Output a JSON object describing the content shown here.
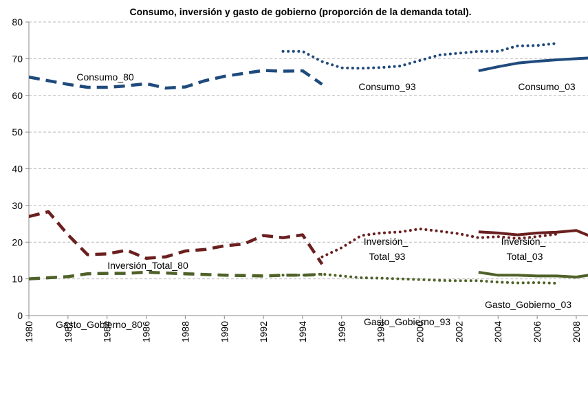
{
  "chart_data": {
    "type": "line",
    "title": "Consumo, inversión y gasto de gobierno  (proporción de la demanda total).",
    "xlim": [
      1980,
      2008.6
    ],
    "ylim": [
      0,
      80
    ],
    "xticks": [
      1980,
      1982,
      1984,
      1986,
      1988,
      1990,
      1992,
      1994,
      1996,
      1998,
      2000,
      2002,
      2004,
      2006,
      2008
    ],
    "yticks": [
      0,
      10,
      20,
      30,
      40,
      50,
      60,
      70,
      80
    ],
    "grid": true,
    "series": [
      {
        "name": "Consumo_80",
        "color": "#1f4a7c",
        "style": "dashed",
        "x": [
          1980,
          1981,
          1982,
          1983,
          1984,
          1985,
          1986,
          1987,
          1988,
          1989,
          1990,
          1991,
          1992,
          1993,
          1994,
          1995
        ],
        "values": [
          65,
          64,
          63,
          62.2,
          62.2,
          62.6,
          63.2,
          62,
          62.3,
          64,
          65.2,
          66,
          66.8,
          66.6,
          66.7,
          63
        ]
      },
      {
        "name": "Consumo_93",
        "color": "#1f4a7c",
        "style": "dotted",
        "x": [
          1993,
          1994,
          1995,
          1996,
          1997,
          1998,
          1999,
          2000,
          2001,
          2002,
          2003,
          2004,
          2005,
          2006,
          2007
        ],
        "values": [
          72,
          72,
          69.2,
          67.5,
          67.4,
          67.6,
          68,
          69.5,
          71,
          71.5,
          72,
          72,
          73.5,
          73.6,
          74.2
        ]
      },
      {
        "name": "Consumo_03",
        "color": "#1f4a7c",
        "style": "solid",
        "x": [
          2003,
          2004,
          2005,
          2006,
          2007,
          2008,
          2009
        ],
        "values": [
          66.7,
          67.8,
          68.8,
          69.3,
          69.7,
          70,
          70.3
        ]
      },
      {
        "name": "Inversión_Total_80",
        "color": "#6b1f1f",
        "style": "dashed",
        "x": [
          1980,
          1981,
          1982,
          1983,
          1984,
          1985,
          1986,
          1987,
          1988,
          1989,
          1990,
          1991,
          1992,
          1993,
          1994,
          1995
        ],
        "values": [
          27,
          28.3,
          22,
          16.6,
          16.8,
          17.8,
          15.6,
          16,
          17.6,
          18,
          19,
          19.5,
          21.8,
          21.2,
          22,
          14
        ]
      },
      {
        "name": "Inversión_\nTotal_93",
        "color": "#6b1f1f",
        "style": "dotted",
        "x": [
          1995,
          1996,
          1997,
          1998,
          1999,
          2000,
          2001,
          2002,
          2003,
          2004,
          2005,
          2006,
          2007
        ],
        "values": [
          16,
          18.5,
          21.8,
          22.5,
          22.8,
          23.6,
          23,
          22.3,
          21.2,
          21.5,
          21,
          21.5,
          22.2
        ]
      },
      {
        "name": "Inversión_\nTotal_03",
        "color": "#6b1f1f",
        "style": "solid",
        "x": [
          2003,
          2004,
          2005,
          2006,
          2007,
          2008,
          2009
        ],
        "values": [
          22.8,
          22.5,
          22,
          22.5,
          22.7,
          23.2,
          21
        ]
      },
      {
        "name": "Gasto_Gobierno_80",
        "color": "#4f6228",
        "style": "dashed",
        "x": [
          1980,
          1981,
          1982,
          1983,
          1984,
          1985,
          1986,
          1987,
          1988,
          1989,
          1990,
          1991,
          1992,
          1993,
          1994,
          1995
        ],
        "values": [
          10,
          10.3,
          10.6,
          11.4,
          11.5,
          11.5,
          11.8,
          11.6,
          11.4,
          11.2,
          11,
          10.9,
          10.8,
          11,
          11,
          11.2
        ]
      },
      {
        "name": "Gasto_Gobierno_93",
        "color": "#4f6228",
        "style": "dotted",
        "x": [
          1993,
          1994,
          1995,
          1996,
          1997,
          1998,
          1999,
          2000,
          2001,
          2002,
          2003,
          2004,
          2005,
          2006,
          2007
        ],
        "values": [
          11,
          11,
          11.3,
          10.8,
          10.3,
          10.2,
          10,
          9.8,
          9.6,
          9.5,
          9.5,
          9.1,
          8.9,
          9,
          8.8
        ]
      },
      {
        "name": "Gasto_Gobierno_03",
        "color": "#4f6228",
        "style": "solid",
        "x": [
          2003,
          2004,
          2005,
          2006,
          2007,
          2008,
          2009
        ],
        "values": [
          11.8,
          11,
          11,
          10.8,
          10.8,
          10.5,
          11.3
        ]
      }
    ]
  }
}
